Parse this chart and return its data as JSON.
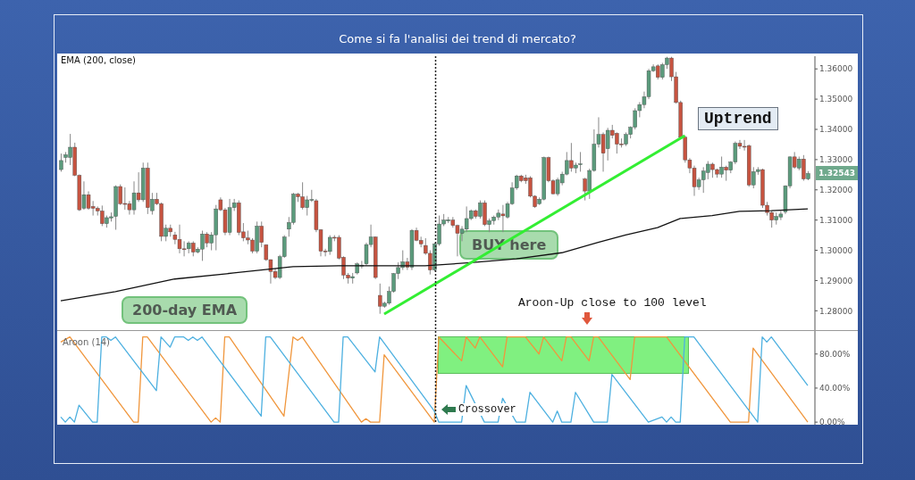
{
  "chart_data": [
    {
      "type": "candlestick",
      "title": "Come si fa l'analisi dei trend di mercato?",
      "categories": [
        null,
        null,
        null,
        null,
        null,
        null,
        null,
        null,
        null,
        null,
        null,
        null,
        null,
        null,
        null,
        null,
        null,
        null,
        null,
        null,
        null,
        null,
        null,
        null,
        null,
        null,
        null,
        null,
        null,
        null,
        null,
        null,
        null,
        null,
        null,
        null,
        null,
        null,
        null,
        null,
        null,
        null,
        null,
        null,
        null,
        null,
        null,
        null,
        null,
        null,
        null,
        null,
        null,
        null,
        null,
        null,
        null,
        null,
        null,
        null,
        null,
        null,
        null,
        null,
        null,
        null,
        null,
        null,
        null,
        null,
        null,
        null,
        null,
        null,
        null,
        null,
        null,
        null,
        null,
        null,
        null,
        null,
        null,
        null,
        null,
        null,
        null,
        null,
        null,
        null,
        null,
        null,
        null,
        null,
        null,
        null,
        null,
        null,
        null,
        null,
        null,
        null,
        null,
        null,
        null,
        null,
        null,
        null,
        null,
        null,
        null,
        null,
        null,
        null,
        null,
        null,
        null,
        null,
        null,
        null,
        null,
        null,
        null,
        null,
        null,
        null,
        null,
        null,
        null,
        null,
        null,
        null,
        null,
        null,
        null,
        null,
        null,
        null,
        null,
        null,
        null,
        null,
        null,
        null,
        null,
        null,
        null,
        null,
        null,
        null,
        null,
        null,
        null,
        null,
        null,
        null,
        null,
        null,
        null,
        null,
        null,
        null,
        null,
        null,
        null
      ],
      "ohlc": [
        [
          1.3267,
          1.332,
          1.326,
          1.3297
        ],
        [
          1.3307,
          1.3325,
          1.329,
          1.3316
        ],
        [
          1.3307,
          1.3385,
          1.3282,
          1.3341
        ],
        [
          1.3341,
          1.3356,
          1.3245,
          1.3248
        ],
        [
          1.3248,
          1.3251,
          1.313,
          1.3134
        ],
        [
          1.3139,
          1.3228,
          1.3134,
          1.3184
        ],
        [
          1.3184,
          1.3195,
          1.3134,
          1.3139
        ],
        [
          1.3145,
          1.3163,
          1.3115,
          1.3139
        ],
        [
          1.3139,
          1.3145,
          1.3115,
          1.313
        ],
        [
          1.313,
          1.3148,
          1.308,
          1.3088
        ],
        [
          1.3088,
          1.3115,
          1.3075,
          1.3108
        ],
        [
          1.3107,
          1.3125,
          1.3095,
          1.3111
        ],
        [
          1.3112,
          1.3215,
          1.3068,
          1.3211
        ],
        [
          1.3211,
          1.3218,
          1.315,
          1.3154
        ],
        [
          1.3155,
          1.3208,
          1.3134,
          1.3152
        ],
        [
          1.3154,
          1.3163,
          1.3118,
          1.3134
        ],
        [
          1.3134,
          1.3228,
          1.3118,
          1.319
        ],
        [
          1.319,
          1.3258,
          1.316,
          1.3167
        ],
        [
          1.3167,
          1.329,
          1.316,
          1.3272
        ],
        [
          1.3272,
          1.329,
          1.312,
          1.3141
        ],
        [
          1.3131,
          1.319,
          1.3118,
          1.3169
        ],
        [
          1.3169,
          1.319,
          1.315,
          1.3154
        ],
        [
          1.3154,
          1.3158,
          1.303,
          1.3046
        ],
        [
          1.3046,
          1.3085,
          1.303,
          1.3073
        ],
        [
          1.3073,
          1.3085,
          1.3045,
          1.3061
        ],
        [
          1.3051,
          1.3061,
          1.302,
          1.3036
        ],
        [
          1.3036,
          1.3085,
          1.299,
          1.3005
        ],
        [
          1.3005,
          1.303,
          1.298,
          1.3003
        ],
        [
          1.3005,
          1.303,
          1.299,
          1.3024
        ],
        [
          1.3024,
          1.303,
          1.298,
          1.2994
        ],
        [
          1.2994,
          1.301,
          1.299,
          1.3004
        ],
        [
          1.3004,
          1.3065,
          1.2965,
          1.3054
        ],
        [
          1.3054,
          1.306,
          1.301,
          1.3024
        ],
        [
          1.3024,
          1.306,
          1.3,
          1.3051
        ],
        [
          1.3051,
          1.315,
          1.3,
          1.3137
        ],
        [
          1.3167,
          1.3175,
          1.313,
          1.3134
        ],
        [
          1.3134,
          1.314,
          1.305,
          1.3059
        ],
        [
          1.3059,
          1.317,
          1.305,
          1.3141
        ],
        [
          1.3141,
          1.317,
          1.313,
          1.3157
        ],
        [
          1.3157,
          1.3165,
          1.305,
          1.3059
        ],
        [
          1.3061,
          1.309,
          1.303,
          1.3041
        ],
        [
          1.3041,
          1.3065,
          1.302,
          1.3034
        ],
        [
          1.3034,
          1.304,
          1.299,
          1.2997
        ],
        [
          1.2997,
          1.3095,
          1.299,
          1.308
        ],
        [
          1.308,
          1.3095,
          1.301,
          1.3026
        ],
        [
          1.3018,
          1.302,
          1.2965,
          1.2969
        ],
        [
          1.2969,
          1.297,
          1.289,
          1.293
        ],
        [
          1.293,
          1.294,
          1.2905,
          1.291
        ],
        [
          1.291,
          1.2985,
          1.2905,
          1.2979
        ],
        [
          1.2979,
          1.305,
          1.2975,
          1.3044
        ],
        [
          1.307,
          1.311,
          1.3045,
          1.3092
        ],
        [
          1.3092,
          1.319,
          1.3085,
          1.3186
        ],
        [
          1.3186,
          1.319,
          1.316,
          1.3177
        ],
        [
          1.3177,
          1.3225,
          1.3135,
          1.3141
        ],
        [
          1.3141,
          1.318,
          1.3115,
          1.3167
        ],
        [
          1.3167,
          1.32,
          1.316,
          1.3168
        ],
        [
          1.3164,
          1.317,
          1.306,
          1.3068
        ],
        [
          1.3068,
          1.307,
          1.298,
          1.2997
        ],
        [
          1.2998,
          1.3005,
          1.298,
          1.2996
        ],
        [
          1.2996,
          1.305,
          1.2985,
          1.3043
        ],
        [
          1.3043,
          1.305,
          1.303,
          1.3042
        ],
        [
          1.3043,
          1.305,
          1.297,
          1.2974
        ],
        [
          1.2977,
          1.298,
          1.2905,
          1.2918
        ],
        [
          1.2918,
          1.2925,
          1.289,
          1.2908
        ],
        [
          1.2908,
          1.2925,
          1.289,
          1.2913
        ],
        [
          1.2925,
          1.296,
          1.292,
          1.2955
        ],
        [
          1.2949,
          1.2965,
          1.294,
          1.2951
        ],
        [
          1.2955,
          1.3025,
          1.295,
          1.3019
        ],
        [
          1.3019,
          1.3085,
          1.301,
          1.3044
        ],
        [
          1.3044,
          1.3046,
          1.2905,
          1.291
        ],
        [
          1.2851,
          1.289,
          1.279,
          1.2815
        ],
        [
          1.2815,
          1.283,
          1.281,
          1.2825
        ],
        [
          1.2825,
          1.288,
          1.282,
          1.2864
        ],
        [
          1.2864,
          1.2925,
          1.286,
          1.2923
        ],
        [
          1.2923,
          1.296,
          1.2905,
          1.2943
        ],
        [
          1.2943,
          1.3,
          1.2935,
          1.2962
        ],
        [
          1.2962,
          1.2975,
          1.2935,
          1.2944
        ],
        [
          1.2944,
          1.307,
          1.2935,
          1.3066
        ],
        [
          1.3066,
          1.3075,
          1.303,
          1.3033
        ],
        [
          1.3033,
          1.3045,
          1.301,
          1.3021
        ],
        [
          1.3016,
          1.304,
          1.2985,
          1.299
        ],
        [
          1.299,
          1.3,
          1.292,
          1.2935
        ],
        [
          1.2935,
          1.3025,
          1.293,
          1.3021
        ],
        [
          1.3021,
          1.3115,
          1.3015,
          1.3087
        ],
        [
          1.3087,
          1.312,
          1.308,
          1.31
        ],
        [
          1.3097,
          1.311,
          1.309,
          1.3101
        ],
        [
          1.31,
          1.311,
          1.3075,
          1.3082
        ],
        [
          1.3082,
          1.3085,
          1.298,
          1.3056
        ],
        [
          1.3056,
          1.308,
          1.303,
          1.307
        ],
        [
          1.307,
          1.3145,
          1.306,
          1.3105
        ],
        [
          1.3105,
          1.3135,
          1.31,
          1.3131
        ],
        [
          1.3131,
          1.3135,
          1.3105,
          1.3112
        ],
        [
          1.3112,
          1.3165,
          1.3105,
          1.3157
        ],
        [
          1.3157,
          1.3165,
          1.308,
          1.3085
        ],
        [
          1.3085,
          1.3105,
          1.306,
          1.3098
        ],
        [
          1.3098,
          1.3115,
          1.3085,
          1.311
        ],
        [
          1.311,
          1.3135,
          1.31,
          1.3123
        ],
        [
          1.312,
          1.315,
          1.306,
          1.3114
        ],
        [
          1.311,
          1.316,
          1.3105,
          1.3154
        ],
        [
          1.3154,
          1.3225,
          1.315,
          1.3206
        ],
        [
          1.3206,
          1.325,
          1.32,
          1.3246
        ],
        [
          1.3246,
          1.325,
          1.3225,
          1.323
        ],
        [
          1.324,
          1.325,
          1.322,
          1.323
        ],
        [
          1.324,
          1.3245,
          1.3175,
          1.3179
        ],
        [
          1.3179,
          1.3182,
          1.314,
          1.3144
        ],
        [
          1.3154,
          1.3175,
          1.315,
          1.3169
        ],
        [
          1.3169,
          1.331,
          1.3165,
          1.3307
        ],
        [
          1.3307,
          1.331,
          1.3225,
          1.323
        ],
        [
          1.323,
          1.3235,
          1.3185,
          1.3187
        ],
        [
          1.3187,
          1.324,
          1.318,
          1.3233
        ],
        [
          1.3223,
          1.326,
          1.3215,
          1.3252
        ],
        [
          1.3252,
          1.3325,
          1.3248,
          1.3297
        ],
        [
          1.3297,
          1.3355,
          1.326,
          1.3272
        ],
        [
          1.3272,
          1.329,
          1.3255,
          1.3282
        ],
        [
          1.3285,
          1.3325,
          1.326,
          1.3286
        ],
        [
          1.3236,
          1.324,
          1.3165,
          1.3196
        ],
        [
          1.3196,
          1.327,
          1.317,
          1.3264
        ],
        [
          1.3264,
          1.34,
          1.326,
          1.3351
        ],
        [
          1.3351,
          1.344,
          1.334,
          1.3383
        ],
        [
          1.3383,
          1.339,
          1.326,
          1.3321
        ],
        [
          1.3336,
          1.3405,
          1.3297,
          1.3397
        ],
        [
          1.3397,
          1.3415,
          1.337,
          1.338
        ],
        [
          1.3387,
          1.339,
          1.332,
          1.3351
        ],
        [
          1.3352,
          1.337,
          1.334,
          1.335
        ],
        [
          1.3351,
          1.339,
          1.3345,
          1.3383
        ],
        [
          1.3383,
          1.341,
          1.337,
          1.3407
        ],
        [
          1.3407,
          1.347,
          1.34,
          1.3462
        ],
        [
          1.3462,
          1.349,
          1.344,
          1.3482
        ],
        [
          1.3482,
          1.3525,
          1.347,
          1.3508
        ],
        [
          1.3508,
          1.36,
          1.35,
          1.3594
        ],
        [
          1.3594,
          1.3615,
          1.359,
          1.3607
        ],
        [
          1.361,
          1.3615,
          1.3565,
          1.3572
        ],
        [
          1.3572,
          1.362,
          1.3565,
          1.3614
        ],
        [
          1.3614,
          1.364,
          1.36,
          1.3636
        ],
        [
          1.3636,
          1.364,
          1.356,
          1.3574
        ],
        [
          1.3574,
          1.359,
          1.3485,
          1.3489
        ],
        [
          1.3489,
          1.3495,
          1.337,
          1.3374
        ],
        [
          1.3374,
          1.338,
          1.329,
          1.3299
        ],
        [
          1.3299,
          1.3305,
          1.3255,
          1.3272
        ],
        [
          1.3272,
          1.328,
          1.318,
          1.321
        ],
        [
          1.321,
          1.324,
          1.32,
          1.3233
        ],
        [
          1.3233,
          1.3275,
          1.319,
          1.3262
        ],
        [
          1.3257,
          1.3295,
          1.3235,
          1.3285
        ],
        [
          1.3285,
          1.329,
          1.324,
          1.3267
        ],
        [
          1.3267,
          1.327,
          1.324,
          1.3252
        ],
        [
          1.3252,
          1.331,
          1.324,
          1.3275
        ],
        [
          1.3275,
          1.328,
          1.323,
          1.3265
        ],
        [
          1.3265,
          1.3295,
          1.3255,
          1.3292
        ],
        [
          1.3292,
          1.336,
          1.3285,
          1.3354
        ],
        [
          1.3354,
          1.3365,
          1.3335,
          1.3344
        ],
        [
          1.3344,
          1.3365,
          1.333,
          1.3343
        ],
        [
          1.3346,
          1.335,
          1.321,
          1.3216
        ],
        [
          1.3216,
          1.3275,
          1.3205,
          1.326
        ],
        [
          1.326,
          1.3275,
          1.325,
          1.3267
        ],
        [
          1.3267,
          1.327,
          1.314,
          1.3149
        ],
        [
          1.3149,
          1.316,
          1.3115,
          1.3125
        ],
        [
          1.3125,
          1.313,
          1.3075,
          1.31
        ],
        [
          1.31,
          1.3125,
          1.3085,
          1.3112
        ],
        [
          1.311,
          1.313,
          1.31,
          1.312
        ],
        [
          1.3127,
          1.3215,
          1.312,
          1.3213
        ],
        [
          1.3213,
          1.331,
          1.3205,
          1.3309
        ],
        [
          1.3309,
          1.3325,
          1.327,
          1.3275
        ],
        [
          1.3272,
          1.331,
          1.3265,
          1.3302
        ],
        [
          1.3302,
          1.3315,
          1.323,
          1.3236
        ],
        [
          1.3236,
          1.3262,
          1.3232,
          1.3254
        ]
      ],
      "colors": [
        "#5b9b7c",
        "#5b9b7c",
        "#5b9b7c",
        "#c65340",
        "#c65340",
        "#5b9b7c",
        "#c65340",
        "#c65340",
        "#c65340",
        "#c65340",
        "#5b9b7c",
        "#5b9b7c",
        "#5b9b7c",
        "#c65340",
        "#c65340",
        "#c65340",
        "#5b9b7c",
        "#c65340",
        "#5b9b7c",
        "#c65340",
        "#5b9b7c",
        "#c65340",
        "#c65340",
        "#5b9b7c",
        "#c65340",
        "#c65340",
        "#c65340",
        "#c65340",
        "#5b9b7c",
        "#c65340",
        "#5b9b7c",
        "#5b9b7c",
        "#c65340",
        "#5b9b7c",
        "#5b9b7c",
        "#c65340",
        "#c65340",
        "#5b9b7c",
        "#5b9b7c",
        "#c65340",
        "#c65340",
        "#c65340",
        "#c65340",
        "#5b9b7c",
        "#c65340",
        "#c65340",
        "#c65340",
        "#c65340",
        "#5b9b7c",
        "#5b9b7c",
        "#5b9b7c",
        "#5b9b7c",
        "#c65340",
        "#c65340",
        "#5b9b7c",
        "#5b9b7c",
        "#c65340",
        "#c65340",
        "#c65340",
        "#5b9b7c",
        "#c65340",
        "#c65340",
        "#c65340",
        "#c65340",
        "#5b9b7c",
        "#5b9b7c",
        "#5b9b7c",
        "#5b9b7c",
        "#5b9b7c",
        "#c65340",
        "#c65340",
        "#5b9b7c",
        "#5b9b7c",
        "#5b9b7c",
        "#5b9b7c",
        "#5b9b7c",
        "#c65340",
        "#5b9b7c",
        "#c65340",
        "#c65340",
        "#c65340",
        "#c65340",
        "#5b9b7c",
        "#5b9b7c",
        "#5b9b7c",
        "#5b9b7c",
        "#c65340",
        "#c65340",
        "#5b9b7c",
        "#5b9b7c",
        "#5b9b7c",
        "#c65340",
        "#5b9b7c",
        "#c65340",
        "#5b9b7c",
        "#5b9b7c",
        "#5b9b7c",
        "#c65340",
        "#5b9b7c",
        "#5b9b7c",
        "#5b9b7c",
        "#c65340",
        "#c65340",
        "#c65340",
        "#c65340",
        "#5b9b7c",
        "#5b9b7c",
        "#c65340",
        "#c65340",
        "#5b9b7c",
        "#5b9b7c",
        "#5b9b7c",
        "#c65340",
        "#5b9b7c",
        "#5b9b7c",
        "#c65340",
        "#5b9b7c",
        "#5b9b7c",
        "#5b9b7c",
        "#c65340",
        "#5b9b7c",
        "#c65340",
        "#c65340",
        "#c65340",
        "#5b9b7c",
        "#5b9b7c",
        "#5b9b7c",
        "#5b9b7c",
        "#5b9b7c",
        "#5b9b7c",
        "#5b9b7c",
        "#c65340",
        "#5b9b7c",
        "#5b9b7c",
        "#c65340",
        "#c65340",
        "#c65340",
        "#c65340",
        "#c65340",
        "#c65340",
        "#5b9b7c",
        "#5b9b7c",
        "#5b9b7c",
        "#c65340",
        "#c65340",
        "#5b9b7c",
        "#c65340",
        "#5b9b7c",
        "#5b9b7c",
        "#c65340",
        "#c65340",
        "#c65340",
        "#5b9b7c",
        "#5b9b7c",
        "#c65340",
        "#c65340",
        "#c65340",
        "#5b9b7c",
        "#5b9b7c",
        "#5b9b7c",
        "#5b9b7c",
        "#c65340",
        "#5b9b7c",
        "#c65340",
        "#5b9b7c"
      ],
      "ylim": [
        1.2736,
        1.3642
      ],
      "yticks": [
        {
          "value": 1.28,
          "label": "1.28000"
        },
        {
          "value": 1.29,
          "label": "1.29000"
        },
        {
          "value": 1.3,
          "label": "1.30000"
        },
        {
          "value": 1.31,
          "label": "1.31000"
        },
        {
          "value": 1.32,
          "label": "1.32000"
        },
        {
          "value": 1.33,
          "label": "1.33000"
        },
        {
          "value": 1.34,
          "label": "1.34000"
        },
        {
          "value": 1.35,
          "label": "1.35000"
        },
        {
          "value": 1.36,
          "label": "1.36000"
        }
      ],
      "tick_labels": "y",
      "series": [
        {
          "type": "line",
          "name": "EMA (200, close)",
          "color": "#111111",
          "values": [
            1.2833,
            null,
            null,
            null,
            null,
            null,
            null,
            null,
            null,
            null,
            null,
            null,
            1.2863,
            null,
            null,
            null,
            null,
            null,
            null,
            null,
            null,
            null,
            null,
            null,
            null,
            1.2905,
            null,
            null,
            null,
            null,
            null,
            null,
            null,
            null,
            null,
            null,
            null,
            null,
            1.2925,
            null,
            null,
            null,
            null,
            null,
            null,
            null,
            null,
            null,
            null,
            null,
            null,
            1.2946,
            null,
            null,
            null,
            null,
            null,
            null,
            null,
            null,
            null,
            1.2949,
            null,
            null,
            null,
            null,
            null,
            null,
            null,
            null,
            null,
            null,
            null,
            null,
            null,
            null,
            null,
            null,
            null,
            null,
            1.2949,
            null,
            null,
            null,
            null,
            null,
            null,
            null,
            null,
            null,
            1.2959,
            null,
            null,
            null,
            null,
            null,
            null,
            null,
            null,
            null,
            1.2972,
            null,
            null,
            null,
            null,
            null,
            null,
            null,
            null,
            null,
            1.2992,
            null,
            null,
            null,
            null,
            null,
            null,
            null,
            1.3026,
            null,
            null,
            null,
            null,
            null,
            1.3051,
            null,
            null,
            null,
            null,
            null,
            null,
            1.3075,
            null,
            null,
            null,
            null,
            1.3105,
            null,
            null,
            null,
            null,
            null,
            null,
            1.3115,
            null,
            null,
            null,
            null,
            null,
            1.3129,
            null,
            null,
            null,
            null,
            null,
            null,
            1.3131,
            null,
            null,
            null,
            null,
            null,
            null,
            null,
            1.3137
          ]
        },
        {
          "type": "line",
          "color": "#33ee33",
          "values": [
            null,
            null,
            null,
            null,
            null,
            null,
            null,
            null,
            null,
            null,
            null,
            null,
            null,
            null,
            null,
            null,
            null,
            null,
            null,
            null,
            null,
            null,
            null,
            null,
            null,
            null,
            null,
            null,
            null,
            null,
            null,
            null,
            null,
            null,
            null,
            null,
            null,
            null,
            null,
            null,
            null,
            null,
            null,
            null,
            null,
            null,
            null,
            null,
            null,
            null,
            null,
            null,
            null,
            null,
            null,
            null,
            null,
            null,
            null,
            null,
            null,
            null,
            null,
            null,
            null,
            null,
            null,
            null,
            null,
            null,
            null,
            1.2789,
            null,
            null,
            null,
            null,
            null,
            null,
            null,
            null,
            null,
            null,
            null,
            null,
            null,
            null,
            null,
            null,
            null,
            null,
            null,
            null,
            null,
            null,
            null,
            null,
            null,
            null,
            null,
            null,
            null,
            null,
            null,
            null,
            null,
            null,
            null,
            null,
            null,
            null,
            null,
            null,
            null,
            null,
            null,
            null,
            null,
            null,
            null,
            null,
            null,
            null,
            null,
            null,
            null,
            null,
            null,
            null,
            null,
            null,
            null,
            null,
            null,
            null,
            null,
            null,
            null,
            1.3379,
            null,
            null,
            null,
            null,
            null,
            null,
            null,
            null,
            null,
            null,
            null,
            null,
            null,
            null,
            null,
            null,
            null,
            null,
            null,
            null,
            null,
            null,
            null,
            null,
            null,
            null,
            null
          ]
        }
      ],
      "annotations": [
        "200-day EMA",
        "BUY here",
        "Uptrend",
        "Aroon-Up close to 100 level",
        "1.32543"
      ]
    },
    {
      "type": "line",
      "categories": [
        null,
        null,
        null,
        null,
        null,
        null,
        null,
        null,
        null,
        null,
        null,
        null,
        null,
        null,
        null,
        null,
        null,
        null,
        null,
        null,
        null,
        null,
        null,
        null,
        null,
        null,
        null,
        null,
        null,
        null,
        null,
        null,
        null,
        null,
        null,
        null,
        null,
        null,
        null,
        null,
        null,
        null,
        null,
        null,
        null,
        null,
        null,
        null,
        null,
        null,
        null,
        null,
        null,
        null,
        null,
        null,
        null,
        null,
        null,
        null,
        null,
        null,
        null,
        null,
        null,
        null,
        null,
        null,
        null,
        null,
        null,
        null,
        null,
        null,
        null,
        null,
        null,
        null,
        null,
        null,
        null,
        null,
        null,
        null,
        null,
        null,
        null,
        null,
        null,
        null,
        null,
        null,
        null,
        null,
        null,
        null,
        null,
        null,
        null,
        null,
        null,
        null,
        null,
        null,
        null,
        null,
        null,
        null,
        null,
        null,
        null,
        null,
        null,
        null,
        null,
        null,
        null,
        null,
        null,
        null,
        null,
        null,
        null,
        null,
        null,
        null,
        null,
        null,
        null,
        null,
        null,
        null,
        null,
        null,
        null,
        null,
        null,
        null,
        null,
        null,
        null,
        null,
        null,
        null,
        null,
        null,
        null,
        null,
        null,
        null,
        null,
        null,
        null,
        null,
        null,
        null,
        null,
        null,
        null,
        null,
        null,
        null,
        null,
        null,
        null
      ],
      "ylim": [
        -3,
        107
      ],
      "yticks": [
        {
          "value": 0,
          "label": "0.00%"
        },
        {
          "value": 40,
          "label": "40.00%"
        },
        {
          "value": 80,
          "label": "80.00%"
        }
      ],
      "tick_labels": "y",
      "series": [
        {
          "color": "#f0963c",
          "values": [
            94,
            null,
            100,
            null,
            null,
            null,
            null,
            null,
            null,
            null,
            null,
            null,
            null,
            null,
            null,
            null,
            0,
            0,
            100,
            100,
            null,
            null,
            null,
            null,
            null,
            null,
            null,
            null,
            null,
            null,
            null,
            null,
            null,
            0,
            5,
            0,
            100,
            100,
            null,
            null,
            null,
            null,
            null,
            null,
            null,
            null,
            null,
            null,
            null,
            7,
            null,
            100,
            96,
            100,
            null,
            null,
            null,
            null,
            null,
            null,
            null,
            null,
            null,
            null,
            null,
            null,
            0,
            4,
            0,
            null,
            0,
            79,
            null,
            null,
            null,
            null,
            null,
            null,
            null,
            null,
            null,
            null,
            0,
            100,
            null,
            null,
            null,
            null,
            72,
            100,
            null,
            87,
            100,
            null,
            null,
            null,
            null,
            65,
            100,
            null,
            null,
            null,
            100,
            null,
            null,
            80,
            100,
            null,
            null,
            null,
            72,
            100,
            100,
            null,
            null,
            null,
            72,
            100,
            100,
            null,
            null,
            null,
            null,
            null,
            null,
            50,
            100,
            null,
            null,
            null,
            null,
            null,
            null,
            100,
            null,
            null,
            null,
            null,
            null,
            null,
            null,
            null,
            null,
            null,
            null,
            null,
            null,
            0,
            null,
            null,
            null,
            0,
            87,
            null,
            null,
            null,
            null,
            null,
            null,
            null,
            null,
            null,
            null,
            null,
            0
          ]
        },
        {
          "color": "#4db0e0",
          "values": [
            6,
            0,
            6,
            0,
            20,
            null,
            null,
            0,
            0,
            100,
            100,
            96,
            100,
            null,
            null,
            null,
            null,
            null,
            null,
            null,
            null,
            37,
            100,
            null,
            88,
            100,
            null,
            100,
            96,
            100,
            96,
            100,
            null,
            null,
            null,
            null,
            null,
            null,
            null,
            null,
            null,
            null,
            null,
            null,
            7,
            100,
            100,
            null,
            null,
            null,
            null,
            null,
            null,
            null,
            null,
            null,
            null,
            null,
            null,
            null,
            0,
            0,
            100,
            100,
            null,
            null,
            null,
            null,
            null,
            59,
            100,
            null,
            null,
            null,
            null,
            null,
            null,
            null,
            null,
            null,
            null,
            null,
            13,
            0,
            null,
            null,
            null,
            null,
            0,
            43,
            null,
            null,
            null,
            0,
            null,
            null,
            0,
            28,
            null,
            null,
            0,
            null,
            0,
            35,
            null,
            null,
            null,
            null,
            0,
            13,
            0,
            null,
            0,
            35,
            null,
            null,
            null,
            0,
            null,
            null,
            0,
            56,
            null,
            null,
            null,
            null,
            null,
            null,
            null,
            0,
            null,
            null,
            6,
            0,
            6,
            0,
            0,
            100,
            null,
            100,
            null,
            null,
            null,
            null,
            null,
            null,
            null,
            null,
            null,
            null,
            null,
            null,
            null,
            0,
            100,
            94,
            100,
            null,
            null,
            null,
            null,
            null,
            null,
            null,
            43
          ]
        }
      ],
      "annotations": [
        "Aroon (14)",
        "Crossover"
      ]
    }
  ]
}
